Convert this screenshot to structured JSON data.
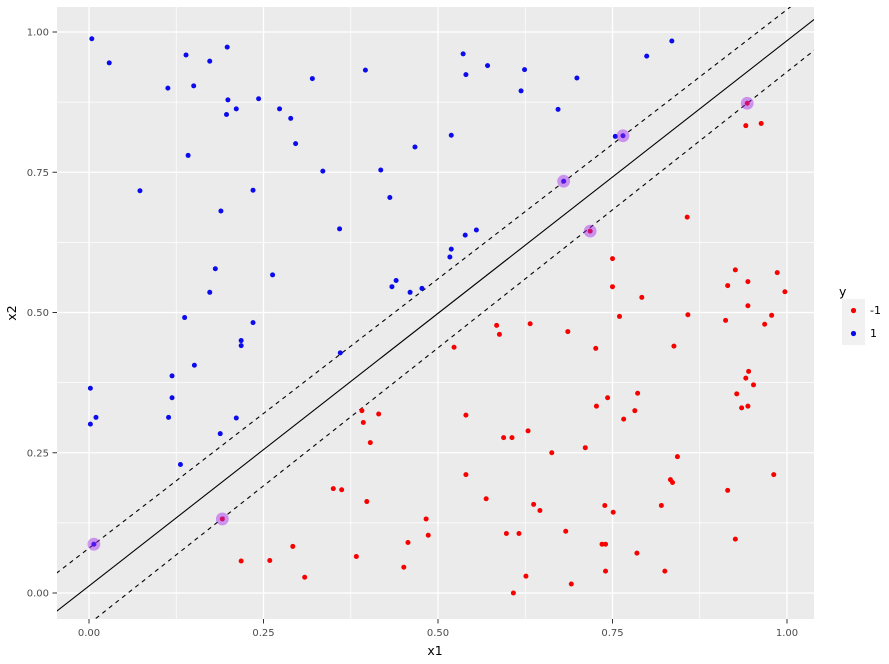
{
  "chart_data": {
    "type": "scatter",
    "title": "",
    "xlabel": "x1",
    "ylabel": "x2",
    "xlim": [
      -0.0458,
      1.0387
    ],
    "ylim": [
      -0.0463,
      1.0446
    ],
    "x_ticks": [
      0.0,
      0.25,
      0.5,
      0.75,
      1.0
    ],
    "x_tick_labels": [
      "0.00",
      "0.25",
      "0.50",
      "0.75",
      "1.00"
    ],
    "y_ticks": [
      0.0,
      0.25,
      0.5,
      0.75,
      1.0
    ],
    "y_tick_labels": [
      "0.00",
      "0.25",
      "0.50",
      "0.75",
      "1.00"
    ],
    "x_minor_ticks": [
      0.125,
      0.375,
      0.625,
      0.875
    ],
    "y_minor_ticks": [
      0.125,
      0.375,
      0.625,
      0.875
    ],
    "grid": true,
    "panel_bg": "#ebebeb",
    "grid_color": "#ffffff",
    "tick_color": "#333333",
    "legend_position": "right",
    "legend": {
      "title": "y",
      "key_bg": "#f1f1f1",
      "items": [
        {
          "label": "-1",
          "color": "#f70000"
        },
        {
          "label": "1",
          "color": "#0b0bec"
        }
      ]
    },
    "lines": [
      {
        "name": "margin-upper",
        "style": "dashed",
        "slope": 0.96,
        "intercept": 0.08,
        "color": "#000000"
      },
      {
        "name": "decision-boundary",
        "style": "solid",
        "slope": 0.972,
        "intercept": 0.0125,
        "color": "#000000"
      },
      {
        "name": "margin-lower",
        "style": "dashed",
        "slope": 0.984,
        "intercept": -0.055,
        "color": "#000000"
      }
    ],
    "support_vectors": {
      "ring_color": "#a124f0",
      "ring_opacity": 0.45,
      "points": [
        [
          0.007,
          0.087
        ],
        [
          0.191,
          0.132
        ],
        [
          0.68,
          0.734
        ],
        [
          0.718,
          0.645
        ],
        [
          0.765,
          0.815
        ],
        [
          0.943,
          0.873
        ]
      ]
    },
    "series": [
      {
        "name": "-1",
        "color": "#f70000",
        "points": [
          [
            0.941,
            0.833
          ],
          [
            0.963,
            0.837
          ],
          [
            0.857,
            0.67
          ],
          [
            0.75,
            0.596
          ],
          [
            0.75,
            0.546
          ],
          [
            0.792,
            0.527
          ],
          [
            0.926,
            0.576
          ],
          [
            0.915,
            0.548
          ],
          [
            0.944,
            0.555
          ],
          [
            0.986,
            0.571
          ],
          [
            0.997,
            0.537
          ],
          [
            0.944,
            0.512
          ],
          [
            0.391,
            0.325
          ],
          [
            0.415,
            0.319
          ],
          [
            0.393,
            0.304
          ],
          [
            0.403,
            0.268
          ],
          [
            0.35,
            0.186
          ],
          [
            0.362,
            0.184
          ],
          [
            0.398,
            0.163
          ],
          [
            0.483,
            0.132
          ],
          [
            0.486,
            0.103
          ],
          [
            0.457,
            0.09
          ],
          [
            0.292,
            0.083
          ],
          [
            0.383,
            0.065
          ],
          [
            0.451,
            0.046
          ],
          [
            0.218,
            0.057
          ],
          [
            0.259,
            0.058
          ],
          [
            0.309,
            0.028
          ],
          [
            0.76,
            0.493
          ],
          [
            0.858,
            0.496
          ],
          [
            0.978,
            0.495
          ],
          [
            0.912,
            0.486
          ],
          [
            0.968,
            0.479
          ],
          [
            0.584,
            0.477
          ],
          [
            0.632,
            0.48
          ],
          [
            0.588,
            0.461
          ],
          [
            0.686,
            0.466
          ],
          [
            0.523,
            0.438
          ],
          [
            0.726,
            0.436
          ],
          [
            0.838,
            0.44
          ],
          [
            0.945,
            0.395
          ],
          [
            0.941,
            0.383
          ],
          [
            0.952,
            0.371
          ],
          [
            0.928,
            0.355
          ],
          [
            0.935,
            0.33
          ],
          [
            0.944,
            0.333
          ],
          [
            0.786,
            0.356
          ],
          [
            0.743,
            0.348
          ],
          [
            0.727,
            0.333
          ],
          [
            0.782,
            0.325
          ],
          [
            0.766,
            0.31
          ],
          [
            0.54,
            0.317
          ],
          [
            0.629,
            0.289
          ],
          [
            0.594,
            0.277
          ],
          [
            0.606,
            0.277
          ],
          [
            0.663,
            0.25
          ],
          [
            0.711,
            0.259
          ],
          [
            0.843,
            0.243
          ],
          [
            0.54,
            0.211
          ],
          [
            0.833,
            0.202
          ],
          [
            0.836,
            0.197
          ],
          [
            0.981,
            0.211
          ],
          [
            0.915,
            0.183
          ],
          [
            0.569,
            0.168
          ],
          [
            0.637,
            0.158
          ],
          [
            0.646,
            0.147
          ],
          [
            0.739,
            0.156
          ],
          [
            0.751,
            0.144
          ],
          [
            0.82,
            0.156
          ],
          [
            0.598,
            0.106
          ],
          [
            0.616,
            0.106
          ],
          [
            0.683,
            0.11
          ],
          [
            0.735,
            0.087
          ],
          [
            0.74,
            0.087
          ],
          [
            0.785,
            0.071
          ],
          [
            0.926,
            0.096
          ],
          [
            0.74,
            0.039
          ],
          [
            0.825,
            0.039
          ],
          [
            0.626,
            0.03
          ],
          [
            0.691,
            0.016
          ],
          [
            0.608,
            0.0
          ],
          [
            0.191,
            0.132
          ],
          [
            0.718,
            0.645
          ],
          [
            0.943,
            0.873
          ]
        ]
      },
      {
        "name": "1",
        "color": "#0b0bec",
        "points": [
          [
            0.004,
            0.988
          ],
          [
            0.029,
            0.945
          ],
          [
            0.139,
            0.959
          ],
          [
            0.173,
            0.948
          ],
          [
            0.198,
            0.973
          ],
          [
            0.113,
            0.9
          ],
          [
            0.15,
            0.904
          ],
          [
            0.199,
            0.879
          ],
          [
            0.211,
            0.863
          ],
          [
            0.197,
            0.853
          ],
          [
            0.243,
            0.881
          ],
          [
            0.273,
            0.863
          ],
          [
            0.289,
            0.846
          ],
          [
            0.32,
            0.917
          ],
          [
            0.396,
            0.932
          ],
          [
            0.296,
            0.801
          ],
          [
            0.335,
            0.752
          ],
          [
            0.418,
            0.754
          ],
          [
            0.467,
            0.795
          ],
          [
            0.431,
            0.705
          ],
          [
            0.359,
            0.649
          ],
          [
            0.073,
            0.717
          ],
          [
            0.142,
            0.78
          ],
          [
            0.189,
            0.681
          ],
          [
            0.235,
            0.718
          ],
          [
            0.181,
            0.578
          ],
          [
            0.263,
            0.567
          ],
          [
            0.173,
            0.536
          ],
          [
            0.44,
            0.557
          ],
          [
            0.434,
            0.546
          ],
          [
            0.46,
            0.536
          ],
          [
            0.477,
            0.543
          ],
          [
            0.536,
            0.961
          ],
          [
            0.571,
            0.94
          ],
          [
            0.54,
            0.924
          ],
          [
            0.624,
            0.933
          ],
          [
            0.619,
            0.895
          ],
          [
            0.699,
            0.918
          ],
          [
            0.835,
            0.984
          ],
          [
            0.799,
            0.957
          ],
          [
            0.672,
            0.862
          ],
          [
            0.519,
            0.816
          ],
          [
            0.754,
            0.814
          ],
          [
            0.555,
            0.647
          ],
          [
            0.539,
            0.638
          ],
          [
            0.519,
            0.613
          ],
          [
            0.517,
            0.599
          ],
          [
            0.137,
            0.491
          ],
          [
            0.235,
            0.482
          ],
          [
            0.218,
            0.45
          ],
          [
            0.218,
            0.441
          ],
          [
            0.151,
            0.406
          ],
          [
            0.119,
            0.387
          ],
          [
            0.002,
            0.365
          ],
          [
            0.119,
            0.348
          ],
          [
            0.01,
            0.313
          ],
          [
            0.002,
            0.301
          ],
          [
            0.114,
            0.313
          ],
          [
            0.211,
            0.312
          ],
          [
            0.188,
            0.284
          ],
          [
            0.36,
            0.428
          ],
          [
            0.131,
            0.229
          ],
          [
            0.007,
            0.087
          ],
          [
            0.68,
            0.734
          ],
          [
            0.765,
            0.815
          ]
        ]
      }
    ]
  }
}
